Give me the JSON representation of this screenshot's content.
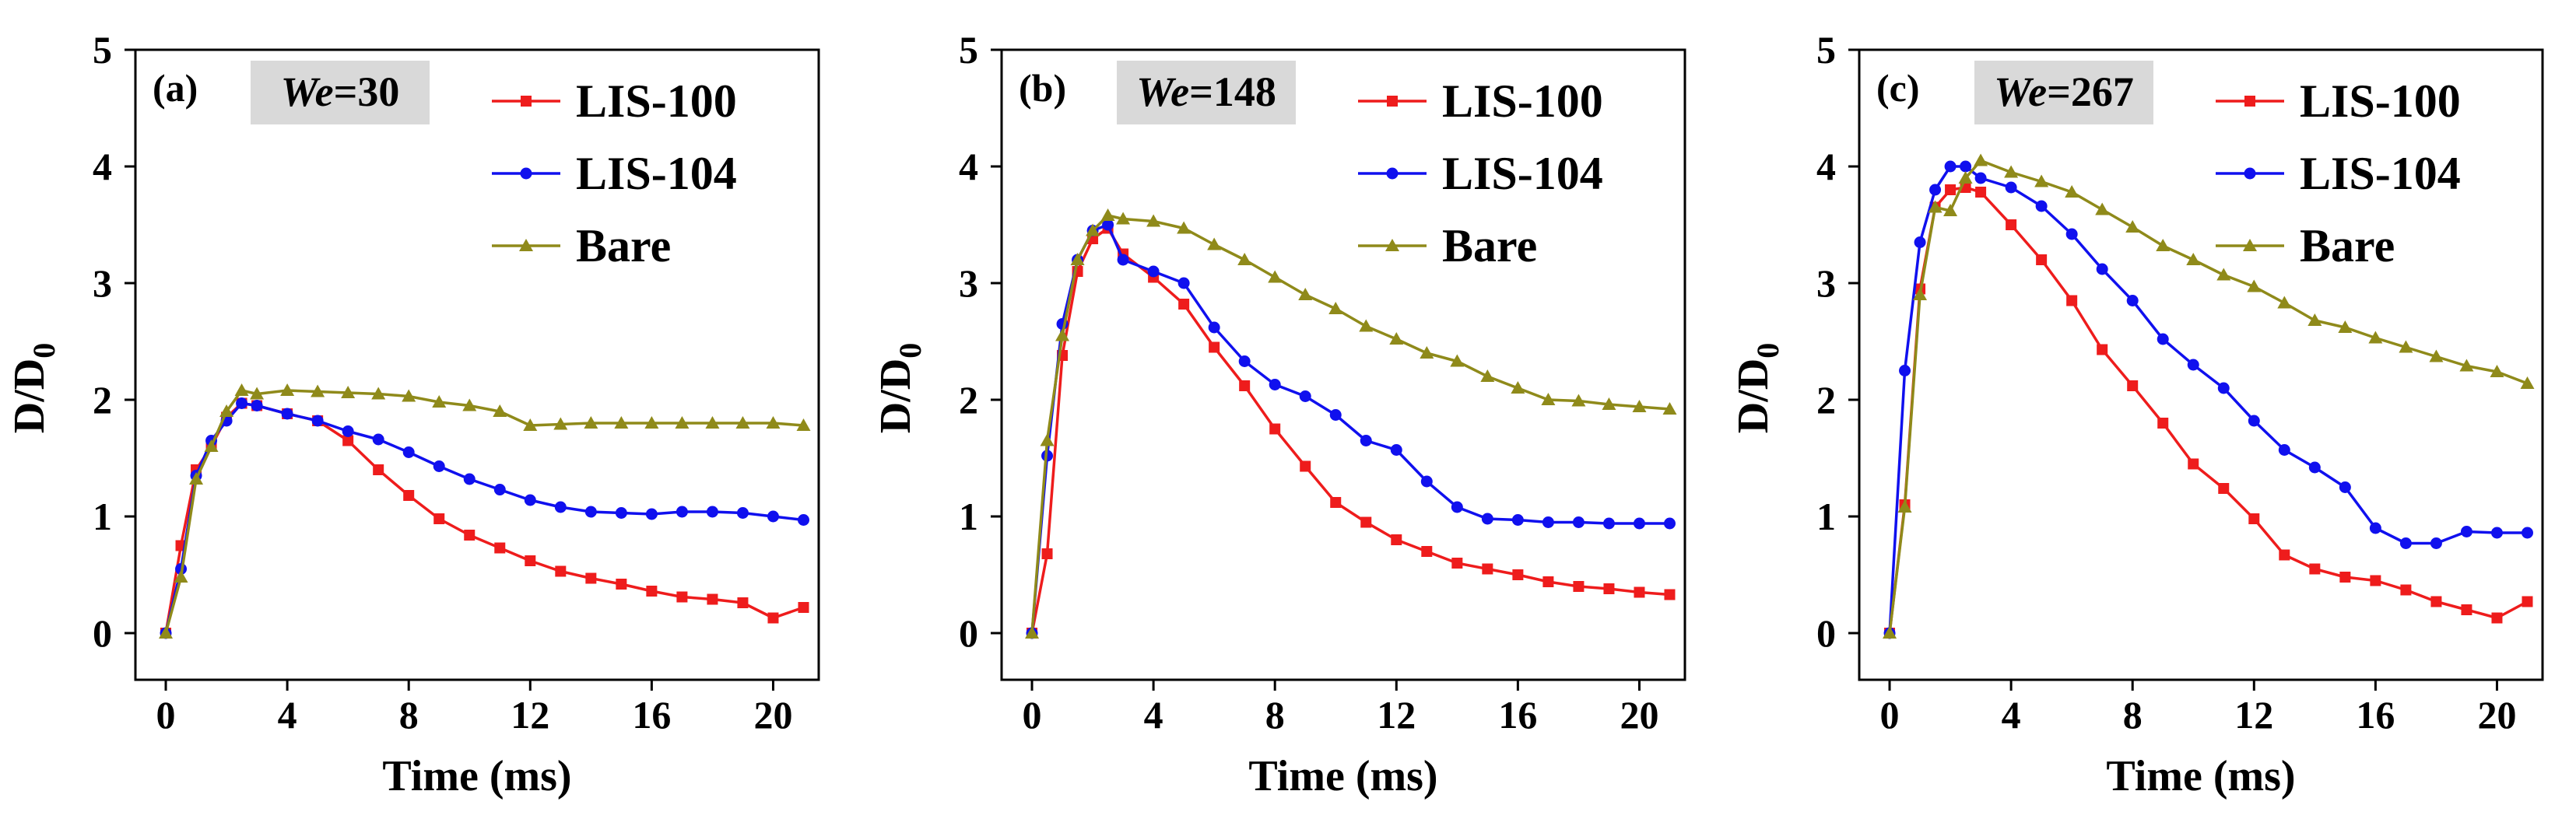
{
  "chart_data": [
    {
      "type": "line",
      "panel_label": "(a)",
      "we_label": "We",
      "we_value": "=30",
      "xlabel": "Time (ms)",
      "ylabel": "D/D",
      "ylabel_sub": "0",
      "xlim": [
        -1,
        21.5
      ],
      "ylim": [
        -0.4,
        5
      ],
      "xticks": [
        0,
        4,
        8,
        12,
        16,
        20
      ],
      "yticks": [
        0,
        1,
        2,
        3,
        4,
        5
      ],
      "legend_position": "top-right",
      "series": [
        {
          "name": "LIS-100",
          "color": "#ee1c1c",
          "marker": "square",
          "x": [
            0,
            0.5,
            1,
            1.5,
            2,
            2.5,
            3,
            4,
            5,
            6,
            7,
            8,
            9,
            10,
            11,
            12,
            13,
            14,
            15,
            16,
            17,
            18,
            19,
            20,
            21
          ],
          "y": [
            0,
            0.75,
            1.4,
            1.6,
            1.85,
            1.97,
            1.95,
            1.88,
            1.82,
            1.65,
            1.4,
            1.18,
            0.98,
            0.84,
            0.73,
            0.62,
            0.53,
            0.47,
            0.42,
            0.36,
            0.31,
            0.29,
            0.26,
            0.13,
            0.22
          ]
        },
        {
          "name": "LIS-104",
          "color": "#1010ee",
          "marker": "circle",
          "x": [
            0,
            0.5,
            1,
            1.5,
            2,
            2.5,
            3,
            4,
            5,
            6,
            7,
            8,
            9,
            10,
            11,
            12,
            13,
            14,
            15,
            16,
            17,
            18,
            19,
            20,
            21
          ],
          "y": [
            0,
            0.55,
            1.35,
            1.65,
            1.82,
            1.97,
            1.95,
            1.88,
            1.82,
            1.73,
            1.66,
            1.55,
            1.43,
            1.32,
            1.23,
            1.14,
            1.08,
            1.04,
            1.03,
            1.02,
            1.04,
            1.04,
            1.03,
            1.0,
            0.97
          ]
        },
        {
          "name": "Bare",
          "color": "#8f8a1a",
          "marker": "triangle",
          "x": [
            0,
            0.5,
            1,
            1.5,
            2,
            2.5,
            3,
            4,
            5,
            6,
            7,
            8,
            9,
            10,
            11,
            12,
            13,
            14,
            15,
            16,
            17,
            18,
            19,
            20,
            21
          ],
          "y": [
            0,
            0.48,
            1.32,
            1.6,
            1.9,
            2.08,
            2.05,
            2.08,
            2.07,
            2.06,
            2.05,
            2.03,
            1.98,
            1.95,
            1.9,
            1.78,
            1.79,
            1.8,
            1.8,
            1.8,
            1.8,
            1.8,
            1.8,
            1.8,
            1.78
          ]
        }
      ]
    },
    {
      "type": "line",
      "panel_label": "(b)",
      "we_label": "We",
      "we_value": "=148",
      "xlabel": "Time (ms)",
      "ylabel": "D/D",
      "ylabel_sub": "0",
      "xlim": [
        -1,
        21.5
      ],
      "ylim": [
        -0.4,
        5
      ],
      "xticks": [
        0,
        4,
        8,
        12,
        16,
        20
      ],
      "yticks": [
        0,
        1,
        2,
        3,
        4,
        5
      ],
      "legend_position": "top-right",
      "series": [
        {
          "name": "LIS-100",
          "color": "#ee1c1c",
          "marker": "square",
          "x": [
            0,
            0.5,
            1,
            1.5,
            2,
            2.5,
            3,
            4,
            5,
            6,
            7,
            8,
            9,
            10,
            11,
            12,
            13,
            14,
            15,
            16,
            17,
            18,
            19,
            20,
            21
          ],
          "y": [
            0,
            0.68,
            2.38,
            3.1,
            3.38,
            3.47,
            3.25,
            3.05,
            2.82,
            2.45,
            2.12,
            1.75,
            1.43,
            1.12,
            0.95,
            0.8,
            0.7,
            0.6,
            0.55,
            0.5,
            0.44,
            0.4,
            0.38,
            0.35,
            0.33
          ]
        },
        {
          "name": "LIS-104",
          "color": "#1010ee",
          "marker": "circle",
          "x": [
            0,
            0.5,
            1,
            1.5,
            2,
            2.5,
            3,
            4,
            5,
            6,
            7,
            8,
            9,
            10,
            11,
            12,
            13,
            14,
            15,
            16,
            17,
            18,
            19,
            20,
            21
          ],
          "y": [
            0,
            1.52,
            2.65,
            3.2,
            3.45,
            3.5,
            3.2,
            3.1,
            3.0,
            2.62,
            2.33,
            2.13,
            2.03,
            1.87,
            1.65,
            1.57,
            1.3,
            1.08,
            0.98,
            0.97,
            0.95,
            0.95,
            0.94,
            0.94,
            0.94
          ]
        },
        {
          "name": "Bare",
          "color": "#8f8a1a",
          "marker": "triangle",
          "x": [
            0,
            0.5,
            1,
            1.5,
            2,
            2.5,
            3,
            4,
            5,
            6,
            7,
            8,
            9,
            10,
            11,
            12,
            13,
            14,
            15,
            16,
            17,
            18,
            19,
            20,
            21
          ],
          "y": [
            0,
            1.65,
            2.55,
            3.2,
            3.45,
            3.58,
            3.55,
            3.53,
            3.47,
            3.33,
            3.2,
            3.05,
            2.9,
            2.78,
            2.63,
            2.52,
            2.4,
            2.33,
            2.2,
            2.1,
            2.0,
            1.99,
            1.96,
            1.94,
            1.92
          ]
        }
      ]
    },
    {
      "type": "line",
      "panel_label": "(c)",
      "we_label": "We",
      "we_value": "=267",
      "xlabel": "Time (ms)",
      "ylabel": "D/D",
      "ylabel_sub": "0",
      "xlim": [
        -1,
        21.5
      ],
      "ylim": [
        -0.4,
        5
      ],
      "xticks": [
        0,
        4,
        8,
        12,
        16,
        20
      ],
      "yticks": [
        0,
        1,
        2,
        3,
        4,
        5
      ],
      "legend_position": "top-right",
      "series": [
        {
          "name": "LIS-100",
          "color": "#ee1c1c",
          "marker": "square",
          "x": [
            0,
            0.5,
            1,
            1.5,
            2,
            2.5,
            3,
            4,
            5,
            6,
            7,
            8,
            9,
            10,
            11,
            12,
            13,
            14,
            15,
            16,
            17,
            18,
            19,
            20,
            21
          ],
          "y": [
            0,
            1.1,
            2.95,
            3.65,
            3.8,
            3.82,
            3.78,
            3.5,
            3.2,
            2.85,
            2.43,
            2.12,
            1.8,
            1.45,
            1.24,
            0.98,
            0.67,
            0.55,
            0.48,
            0.45,
            0.37,
            0.27,
            0.2,
            0.13,
            0.27
          ]
        },
        {
          "name": "LIS-104",
          "color": "#1010ee",
          "marker": "circle",
          "x": [
            0,
            0.5,
            1,
            1.5,
            2,
            2.5,
            3,
            4,
            5,
            6,
            7,
            8,
            9,
            10,
            11,
            12,
            13,
            14,
            15,
            16,
            17,
            18,
            19,
            20,
            21
          ],
          "y": [
            0,
            2.25,
            3.35,
            3.8,
            4.0,
            4.0,
            3.9,
            3.82,
            3.66,
            3.42,
            3.12,
            2.85,
            2.52,
            2.3,
            2.1,
            1.82,
            1.57,
            1.42,
            1.25,
            0.9,
            0.77,
            0.77,
            0.87,
            0.86,
            0.86
          ]
        },
        {
          "name": "Bare",
          "color": "#8f8a1a",
          "marker": "triangle",
          "x": [
            0,
            0.5,
            1,
            1.5,
            2,
            2.5,
            3,
            4,
            5,
            6,
            7,
            8,
            9,
            10,
            11,
            12,
            13,
            14,
            15,
            16,
            17,
            18,
            19,
            20,
            21
          ],
          "y": [
            0,
            1.08,
            2.9,
            3.65,
            3.62,
            3.9,
            4.05,
            3.95,
            3.87,
            3.78,
            3.63,
            3.48,
            3.32,
            3.2,
            3.07,
            2.97,
            2.83,
            2.68,
            2.62,
            2.53,
            2.45,
            2.37,
            2.29,
            2.24,
            2.14
          ]
        }
      ]
    }
  ]
}
